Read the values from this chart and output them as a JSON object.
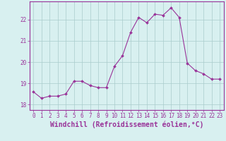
{
  "x": [
    0,
    1,
    2,
    3,
    4,
    5,
    6,
    7,
    8,
    9,
    10,
    11,
    12,
    13,
    14,
    15,
    16,
    17,
    18,
    19,
    20,
    21,
    22,
    23
  ],
  "y": [
    18.6,
    18.3,
    18.4,
    18.4,
    18.5,
    19.1,
    19.1,
    18.9,
    18.8,
    18.8,
    19.8,
    20.3,
    21.4,
    22.1,
    21.85,
    22.25,
    22.2,
    22.55,
    22.1,
    19.95,
    19.6,
    19.45,
    19.2,
    19.2
  ],
  "line_color": "#993399",
  "marker": "D",
  "marker_size": 2,
  "bg_color": "#d8f0f0",
  "grid_color": "#aacccc",
  "axis_color": "#993399",
  "xlabel": "Windchill (Refroidissement éolien,°C)",
  "ylabel": "",
  "ylim": [
    17.75,
    22.85
  ],
  "yticks": [
    18,
    19,
    20,
    21,
    22
  ],
  "xlim": [
    -0.5,
    23.5
  ],
  "xticks": [
    0,
    1,
    2,
    3,
    4,
    5,
    6,
    7,
    8,
    9,
    10,
    11,
    12,
    13,
    14,
    15,
    16,
    17,
    18,
    19,
    20,
    21,
    22,
    23
  ],
  "tick_fontsize": 5.5,
  "label_fontsize": 7
}
